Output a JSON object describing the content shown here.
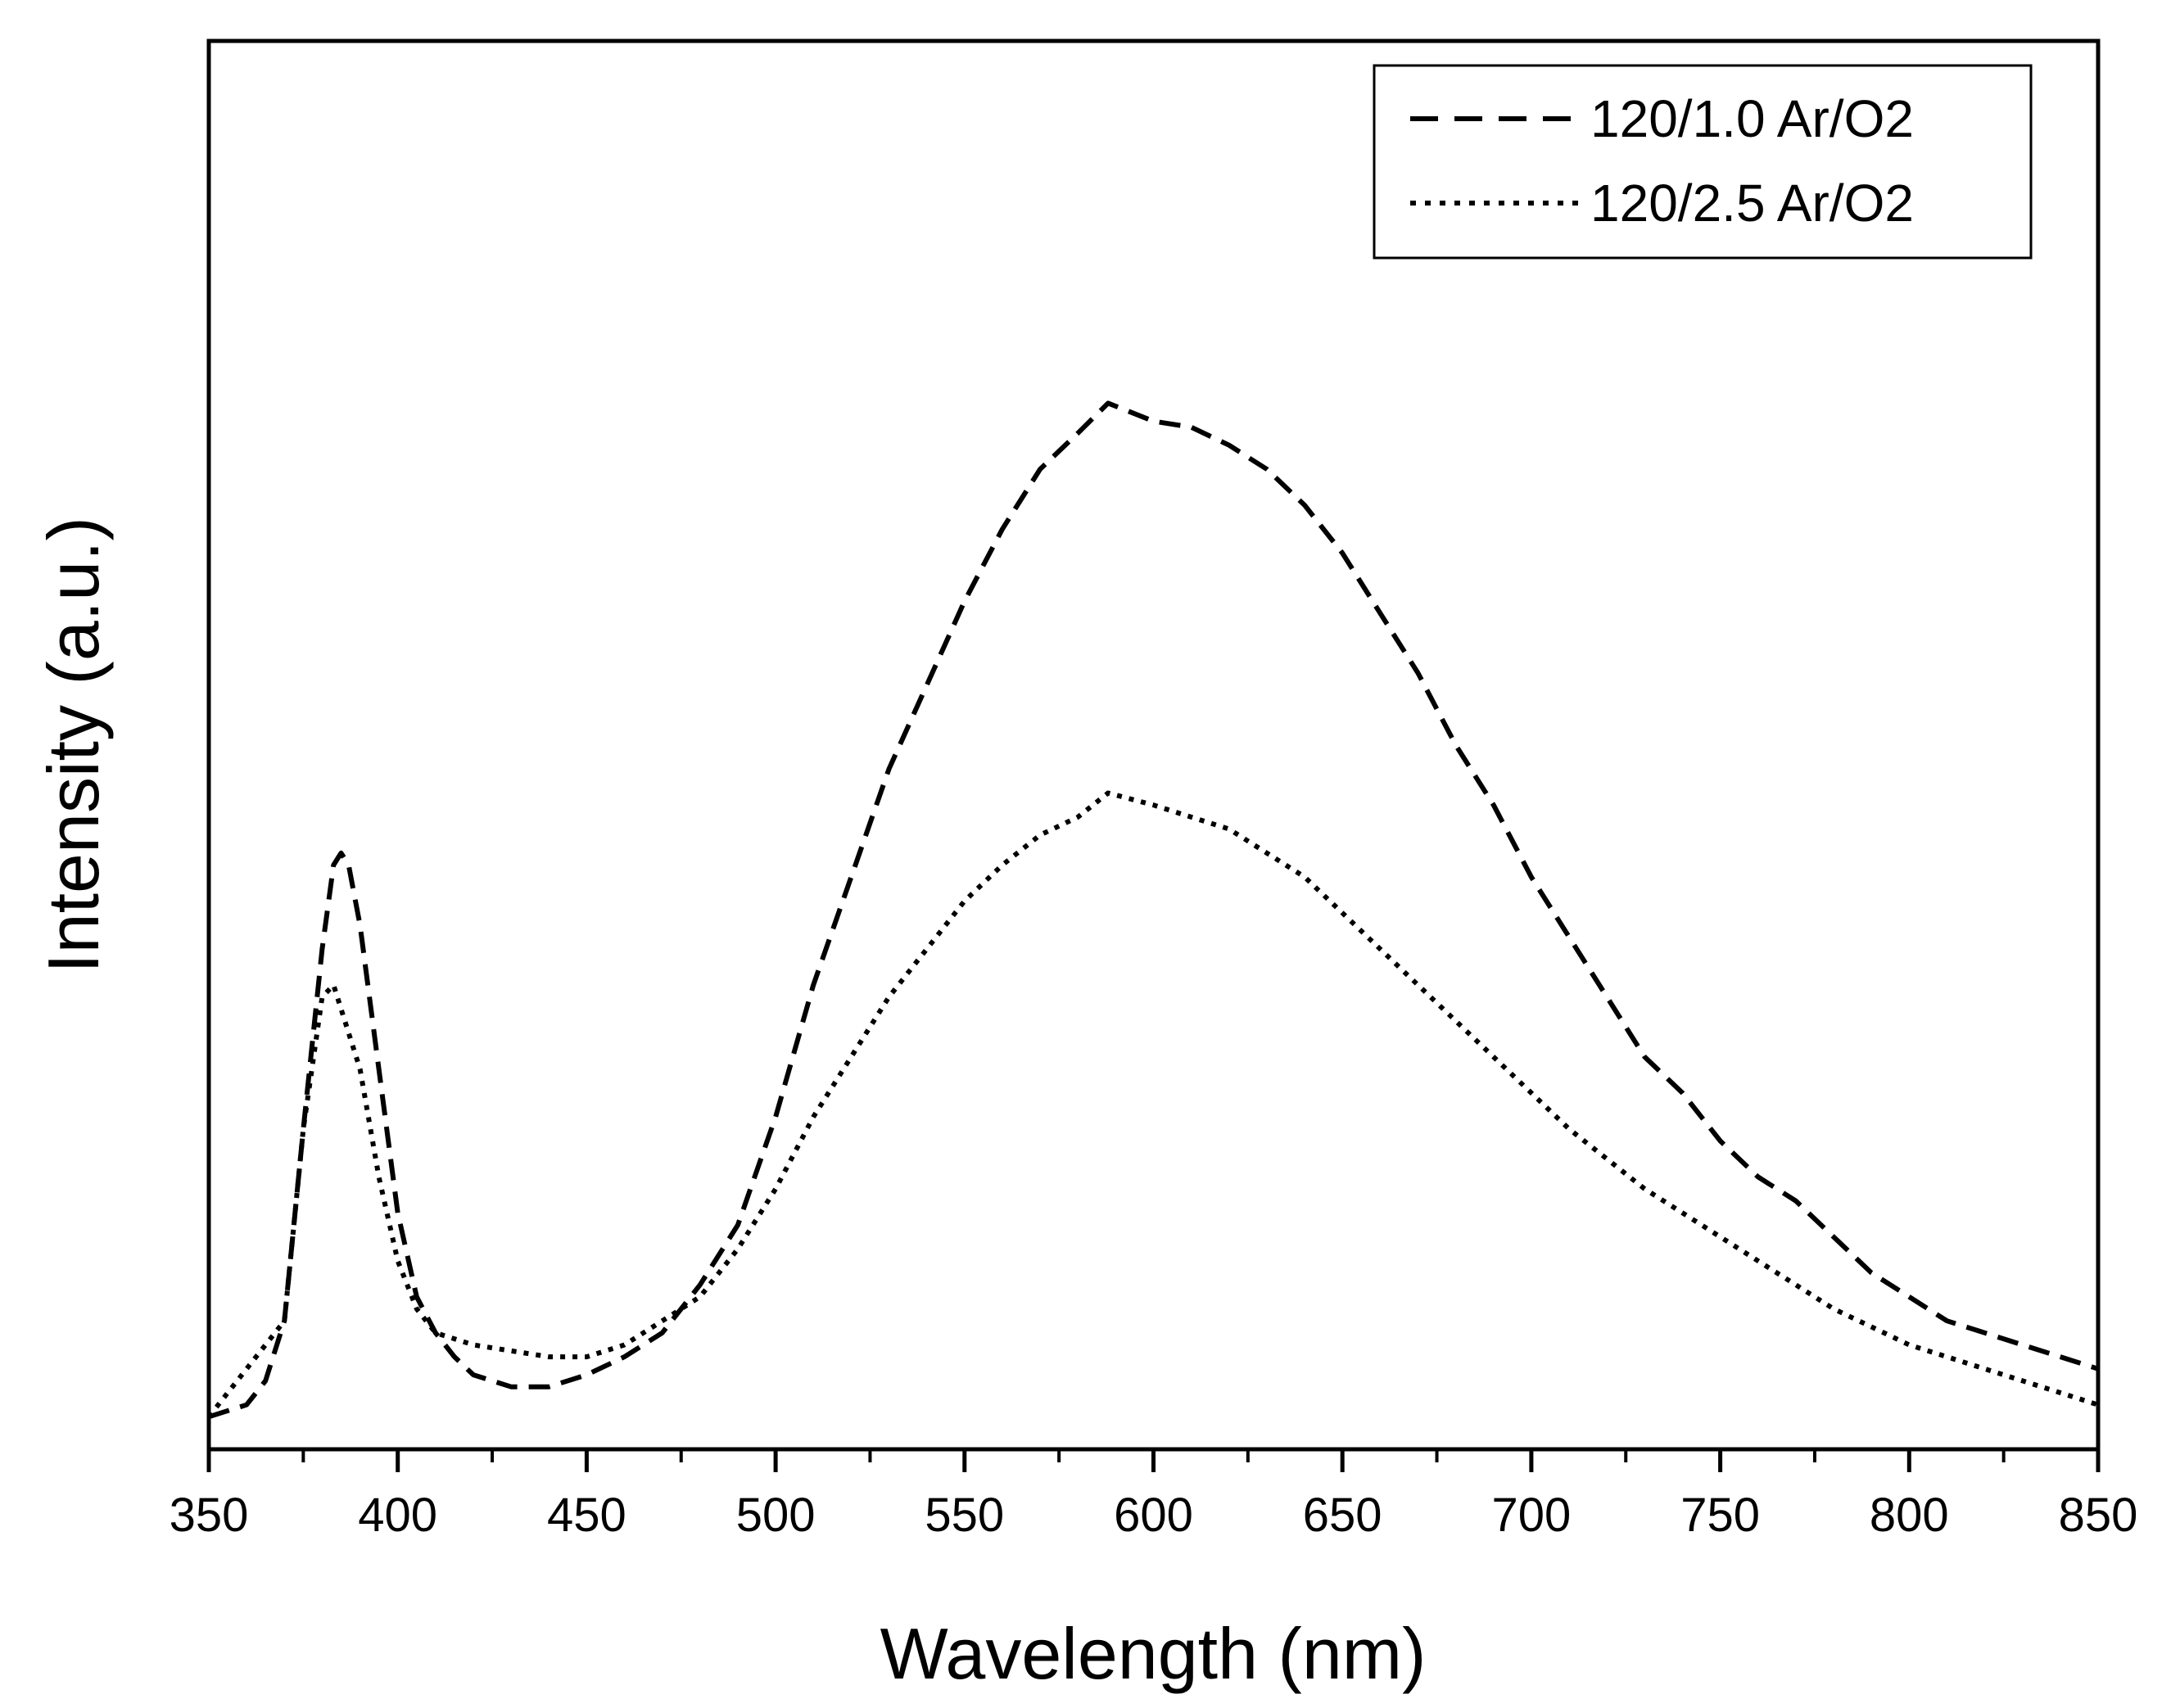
{
  "colors": {
    "background": "#ffffff",
    "ink": "#000000"
  },
  "chart_data": {
    "type": "line",
    "title": "",
    "xlabel": "Wavelength (nm)",
    "ylabel": "Intensity (a.u.)",
    "xlim": [
      350,
      850
    ],
    "ylim": [
      0,
      1
    ],
    "x_ticks": [
      350,
      400,
      450,
      500,
      550,
      600,
      650,
      700,
      750,
      800,
      850
    ],
    "x_tick_labels": [
      "350",
      "400",
      "450",
      "500",
      "550",
      "600",
      "650",
      "700",
      "750",
      "800",
      "850"
    ],
    "y_ticks_shown": false,
    "legend_position": "top-right",
    "grid": false,
    "series": [
      {
        "name": "120/1.0 Ar/O2",
        "style": "dashed",
        "x": [
          350,
          360,
          365,
          370,
          375,
          380,
          383,
          385,
          387,
          390,
          395,
          400,
          405,
          410,
          415,
          420,
          425,
          430,
          435,
          440,
          450,
          460,
          470,
          480,
          490,
          500,
          510,
          520,
          530,
          540,
          550,
          560,
          570,
          580,
          588,
          600,
          610,
          620,
          630,
          640,
          650,
          660,
          670,
          680,
          690,
          700,
          710,
          720,
          730,
          740,
          750,
          760,
          770,
          780,
          790,
          800,
          810,
          820,
          830,
          840,
          850
        ],
        "y": [
          0.01,
          0.02,
          0.04,
          0.09,
          0.25,
          0.4,
          0.47,
          0.48,
          0.47,
          0.42,
          0.3,
          0.18,
          0.11,
          0.08,
          0.06,
          0.045,
          0.04,
          0.035,
          0.035,
          0.035,
          0.045,
          0.06,
          0.08,
          0.12,
          0.17,
          0.26,
          0.37,
          0.46,
          0.55,
          0.62,
          0.69,
          0.75,
          0.8,
          0.83,
          0.855,
          0.84,
          0.835,
          0.82,
          0.8,
          0.77,
          0.73,
          0.68,
          0.63,
          0.57,
          0.52,
          0.46,
          0.41,
          0.36,
          0.31,
          0.28,
          0.24,
          0.21,
          0.19,
          0.16,
          0.13,
          0.11,
          0.09,
          0.08,
          0.07,
          0.06,
          0.05
        ]
      },
      {
        "name": "120/2.5 Ar/O2",
        "style": "dotted",
        "x": [
          350,
          370,
          375,
          380,
          383,
          385,
          387,
          390,
          395,
          400,
          405,
          410,
          420,
          430,
          440,
          450,
          460,
          470,
          480,
          490,
          500,
          510,
          520,
          530,
          540,
          550,
          560,
          570,
          580,
          588,
          600,
          610,
          620,
          630,
          640,
          650,
          660,
          670,
          680,
          690,
          700,
          710,
          720,
          730,
          740,
          750,
          760,
          770,
          780,
          790,
          800,
          810,
          820,
          830,
          840,
          850
        ],
        "y": [
          0.01,
          0.09,
          0.25,
          0.36,
          0.37,
          0.35,
          0.33,
          0.3,
          0.21,
          0.14,
          0.1,
          0.08,
          0.07,
          0.065,
          0.06,
          0.06,
          0.07,
          0.09,
          0.11,
          0.15,
          0.2,
          0.26,
          0.31,
          0.36,
          0.4,
          0.44,
          0.47,
          0.495,
          0.51,
          0.53,
          0.52,
          0.51,
          0.5,
          0.48,
          0.46,
          0.43,
          0.4,
          0.37,
          0.34,
          0.31,
          0.28,
          0.25,
          0.225,
          0.2,
          0.18,
          0.16,
          0.14,
          0.12,
          0.1,
          0.085,
          0.07,
          0.06,
          0.05,
          0.04,
          0.03,
          0.02
        ]
      }
    ]
  }
}
